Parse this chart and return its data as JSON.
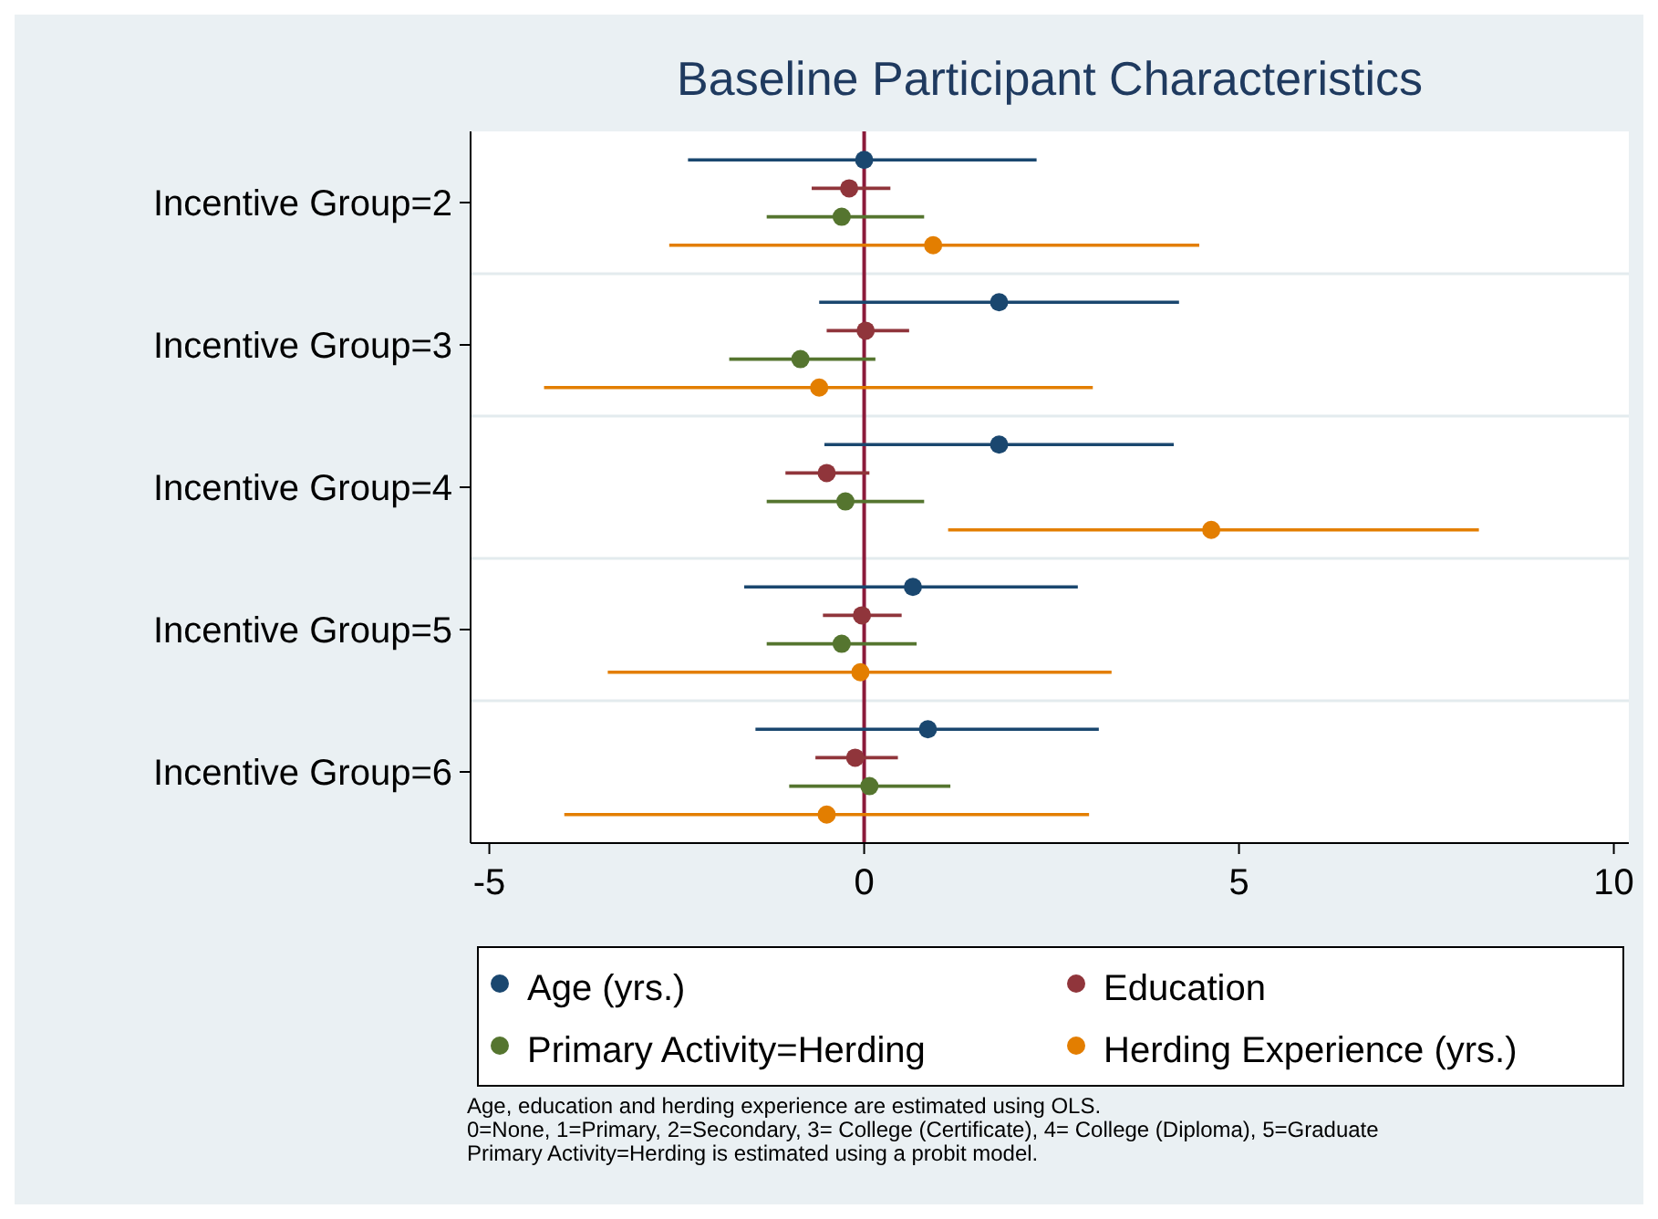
{
  "chart_data": {
    "type": "scatter",
    "orientation": "horizontal",
    "title": "Baseline Participant Characteristics",
    "categories": [
      "Incentive Group=2",
      "Incentive Group=3",
      "Incentive Group=4",
      "Incentive Group=5",
      "Incentive Group=6"
    ],
    "series": [
      {
        "name": "Age (yrs.)",
        "color": "#1a476f",
        "values": [
          0.0,
          1.8,
          1.8,
          0.65,
          0.85
        ],
        "errors": [
          [
            -2.35,
            2.3
          ],
          [
            -0.6,
            4.2
          ],
          [
            -0.53,
            4.13
          ],
          [
            -1.6,
            2.85
          ],
          [
            -1.45,
            3.13
          ]
        ]
      },
      {
        "name": "Education",
        "color": "#90353b",
        "values": [
          -0.2,
          0.02,
          -0.5,
          -0.03,
          -0.12
        ],
        "errors": [
          [
            -0.7,
            0.35
          ],
          [
            -0.5,
            0.6
          ],
          [
            -1.05,
            0.07
          ],
          [
            -0.55,
            0.5
          ],
          [
            -0.65,
            0.45
          ]
        ]
      },
      {
        "name": "Primary Activity=Herding",
        "color": "#55752f",
        "values": [
          -0.3,
          -0.85,
          -0.25,
          -0.3,
          0.07
        ],
        "errors": [
          [
            -1.3,
            0.8
          ],
          [
            -1.8,
            0.15
          ],
          [
            -1.3,
            0.8
          ],
          [
            -1.3,
            0.7
          ],
          [
            -1.0,
            1.15
          ]
        ]
      },
      {
        "name": "Herding Experience (yrs.)",
        "color": "#e37e00",
        "values": [
          0.92,
          -0.6,
          4.63,
          -0.05,
          -0.5
        ],
        "errors": [
          [
            -2.6,
            4.47
          ],
          [
            -4.27,
            3.05
          ],
          [
            1.12,
            8.2
          ],
          [
            -3.42,
            3.3
          ],
          [
            -4.0,
            3.0
          ]
        ]
      }
    ],
    "xlim": [
      -5.25,
      10.2
    ],
    "xticks": [
      -5,
      0,
      5,
      10
    ],
    "grid": true,
    "marker": "circle",
    "legend": "bottom",
    "ref_lines": [
      {
        "axis": "x",
        "value": 0,
        "color": "#8b1a3a"
      }
    ],
    "annotations": [
      "Age, education and herding experience are estimated using OLS.",
      "0=None, 1=Primary, 2=Secondary, 3= College (Certificate), 4= College (Diploma), 5=Graduate",
      "Primary Activity=Herding is estimated using a probit model."
    ]
  }
}
